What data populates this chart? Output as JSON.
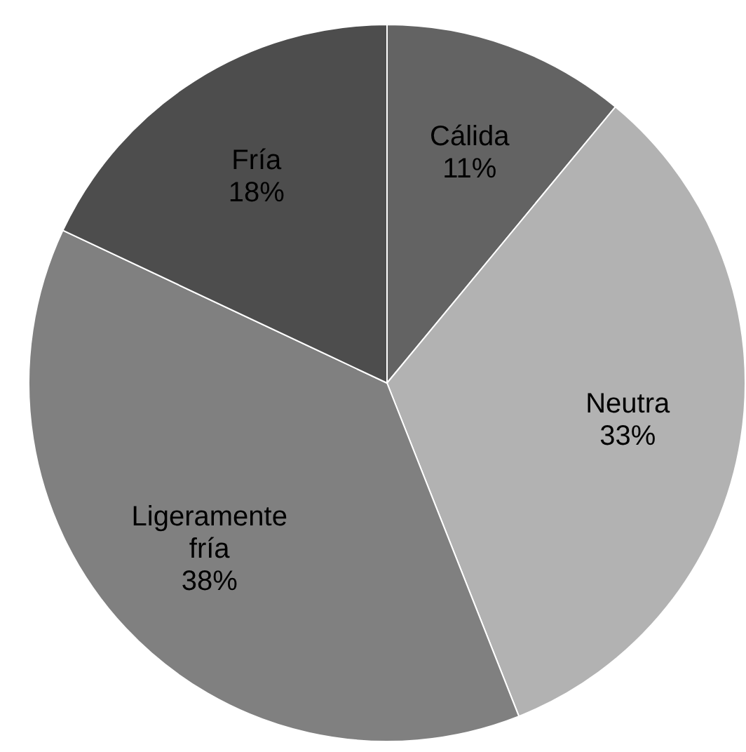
{
  "chart_data": {
    "type": "pie",
    "categories": [
      "Cálida",
      "Neutra",
      "Ligeramente fría",
      "Fría"
    ],
    "values": [
      11,
      33,
      38,
      18
    ],
    "colors": [
      "#636363",
      "#b2b2b2",
      "#808080",
      "#4d4d4d"
    ],
    "value_labels": [
      "11%",
      "33%",
      "38%",
      "18%"
    ],
    "legend": false
  }
}
